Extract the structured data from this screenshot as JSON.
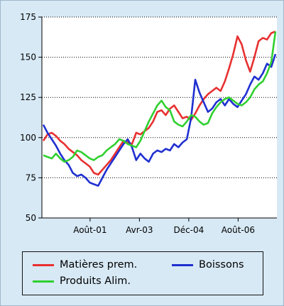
{
  "chart_data": {
    "type": "line",
    "x_tick_labels": [
      "Août-01",
      "Avr-03",
      "Déc-04",
      "Août-06"
    ],
    "y_ticks": [
      50,
      75,
      100,
      125,
      150,
      175
    ],
    "ylim": [
      50,
      175
    ],
    "grid": "horizontal-dotted",
    "legend_position": "bottom",
    "series": [
      {
        "name": "Matières prem.",
        "color": "#e83030",
        "values": [
          98,
          102,
          103,
          101,
          98,
          96,
          93,
          91,
          89,
          86,
          84,
          82,
          78,
          77,
          80,
          83,
          86,
          90,
          94,
          98,
          97,
          96,
          103,
          102,
          104,
          106,
          110,
          116,
          117,
          114,
          118,
          120,
          116,
          112,
          113,
          111,
          115,
          120,
          124,
          127,
          129,
          131,
          129,
          135,
          143,
          152,
          163,
          158,
          148,
          141,
          150,
          160,
          162,
          161,
          165,
          166
        ]
      },
      {
        "name": "Boissons",
        "color": "#2030d0",
        "values": [
          108,
          103,
          99,
          95,
          90,
          86,
          83,
          78,
          76,
          77,
          75,
          72,
          71,
          70,
          75,
          80,
          84,
          88,
          92,
          96,
          99,
          94,
          86,
          90,
          87,
          85,
          90,
          92,
          91,
          93,
          92,
          96,
          94,
          97,
          99,
          112,
          136,
          128,
          122,
          116,
          118,
          122,
          124,
          120,
          124,
          121,
          119,
          123,
          127,
          133,
          138,
          136,
          140,
          146,
          144,
          152
        ]
      },
      {
        "name": "Produits Alim.",
        "color": "#30d030",
        "values": [
          89,
          88,
          87,
          90,
          87,
          85,
          86,
          88,
          92,
          91,
          89,
          87,
          86,
          88,
          89,
          92,
          94,
          96,
          99,
          98,
          96,
          95,
          94,
          98,
          104,
          110,
          115,
          120,
          123,
          119,
          117,
          110,
          108,
          107,
          110,
          114,
          113,
          110,
          108,
          109,
          115,
          119,
          122,
          124,
          125,
          123,
          121,
          120,
          122,
          125,
          130,
          133,
          135,
          140,
          147,
          166
        ]
      }
    ]
  }
}
